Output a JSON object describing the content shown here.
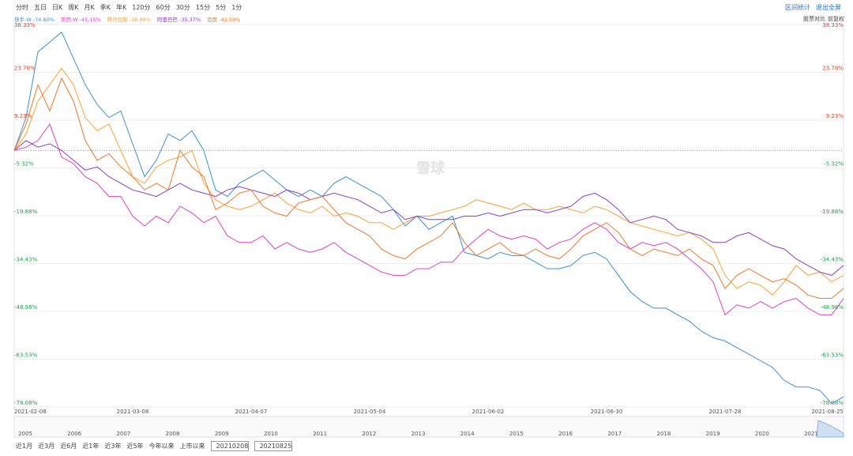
{
  "toolbar": {
    "periods": [
      "分时",
      "五日",
      "日K",
      "周K",
      "月K",
      "季K",
      "年K",
      "120分",
      "60分",
      "30分",
      "15分",
      "5分",
      "1分"
    ],
    "actions": [
      "区间统计",
      "退出全屏"
    ],
    "options": [
      "股票对比",
      "前复权"
    ]
  },
  "chart_data": {
    "type": "line",
    "watermark": "雪球",
    "x": [
      0,
      2,
      4,
      6,
      8,
      10,
      12,
      14,
      16,
      18,
      20,
      22,
      24,
      26,
      28,
      30,
      32,
      34,
      36,
      38,
      40,
      42,
      44,
      46,
      48,
      50,
      52,
      54,
      56,
      58,
      60,
      62,
      64,
      66,
      68,
      70,
      72,
      74,
      76,
      78,
      80,
      82,
      84,
      86,
      88,
      90,
      92,
      94,
      96,
      98,
      100,
      102,
      104,
      106,
      108,
      110,
      112,
      114,
      116,
      118,
      120,
      122,
      124,
      126,
      128,
      130,
      132,
      134,
      136,
      138,
      140
    ],
    "series": [
      {
        "name": "快手-W",
        "change": "-74.60%",
        "color": "#3b8fd9",
        "values": [
          0,
          10,
          30,
          33,
          36,
          28,
          20,
          14,
          10,
          12,
          2,
          -8,
          -3,
          5,
          3,
          6,
          0,
          -12,
          -14,
          -10,
          -8,
          -6,
          -9,
          -12,
          -14,
          -12,
          -14,
          -10,
          -8,
          -10,
          -12,
          -14,
          -18,
          -23,
          -20,
          -24,
          -22,
          -20,
          -31,
          -32,
          -33,
          -31,
          -32,
          -32,
          -34,
          -36,
          -36,
          -35,
          -32,
          -31,
          -33,
          -38,
          -43,
          -46,
          -48,
          -48,
          -50,
          -52,
          -55,
          -57,
          -58,
          -60,
          -62,
          -64,
          -66,
          -70,
          -72,
          -72,
          -73,
          -77,
          -75
        ]
      },
      {
        "name": "美团-W",
        "change": "-45.15%",
        "color": "#e040c8",
        "values": [
          0,
          1,
          3,
          8,
          -2,
          -4,
          -8,
          -10,
          -14,
          -14,
          -20,
          -23,
          -20,
          -22,
          -17,
          -19,
          -22,
          -20,
          -26,
          -28,
          -28,
          -26,
          -30,
          -28,
          -30,
          -31,
          -30,
          -28,
          -31,
          -33,
          -35,
          -37,
          -38,
          -38,
          -36,
          -36,
          -34,
          -34,
          -30,
          -27,
          -24,
          -26,
          -27,
          -26,
          -27,
          -30,
          -28,
          -27,
          -24,
          -22,
          -24,
          -28,
          -30,
          -28,
          -29,
          -28,
          -30,
          -33,
          -36,
          -40,
          -50,
          -47,
          -48,
          -46,
          -48,
          -46,
          -45,
          -48,
          -50,
          -50,
          -45
        ]
      },
      {
        "name": "腾讯控股",
        "change": "-38.88%",
        "color": "#ffa033",
        "values": [
          0,
          5,
          15,
          20,
          25,
          20,
          10,
          6,
          8,
          0,
          -8,
          -10,
          -5,
          -3,
          -2,
          0,
          -10,
          -15,
          -17,
          -18,
          -17,
          -15,
          -13,
          -16,
          -18,
          -19,
          -17,
          -20,
          -19,
          -20,
          -22,
          -22,
          -24,
          -22,
          -20,
          -20,
          -19,
          -18,
          -17,
          -15,
          -16,
          -17,
          -18,
          -16,
          -18,
          -18,
          -17,
          -18,
          -19,
          -17,
          -18,
          -20,
          -22,
          -23,
          -24,
          -25,
          -26,
          -25,
          -27,
          -30,
          -38,
          -42,
          -40,
          -41,
          -44,
          -40,
          -35,
          -38,
          -37,
          -40,
          -38
        ]
      },
      {
        "name": "阿里巴巴",
        "change": "-35.37%",
        "color": "#8a3fc7",
        "values": [
          0,
          3,
          1,
          2,
          0,
          -3,
          -6,
          -5,
          -8,
          -10,
          -12,
          -13,
          -14,
          -12,
          -10,
          -12,
          -13,
          -14,
          -12,
          -11,
          -12,
          -13,
          -14,
          -12,
          -13,
          -15,
          -14,
          -13,
          -14,
          -15,
          -17,
          -19,
          -18,
          -21,
          -20,
          -21,
          -21,
          -21,
          -20,
          -20,
          -19,
          -20,
          -19,
          -18,
          -18,
          -19,
          -18,
          -17,
          -14,
          -13,
          -15,
          -18,
          -22,
          -21,
          -20,
          -21,
          -24,
          -25,
          -26,
          -28,
          -28,
          -26,
          -25,
          -27,
          -29,
          -30,
          -33,
          -35,
          -37,
          -38,
          -35
        ]
      },
      {
        "name": "百度",
        "change": "-42.59%",
        "color": "#f0782a",
        "values": [
          0,
          8,
          20,
          12,
          22,
          15,
          3,
          -3,
          -1,
          -5,
          -8,
          -12,
          -10,
          -12,
          0,
          -5,
          -8,
          -18,
          -16,
          -13,
          -12,
          -17,
          -19,
          -20,
          -16,
          -15,
          -14,
          -18,
          -22,
          -24,
          -26,
          -30,
          -32,
          -33,
          -30,
          -28,
          -26,
          -22,
          -28,
          -32,
          -30,
          -28,
          -31,
          -32,
          -30,
          -32,
          -33,
          -30,
          -26,
          -24,
          -22,
          -25,
          -30,
          -32,
          -30,
          -31,
          -32,
          -30,
          -33,
          -35,
          -42,
          -38,
          -36,
          -38,
          -40,
          -39,
          -41,
          -44,
          -45,
          -45,
          -42
        ]
      }
    ],
    "ylim": [
      -78.08,
      38.33
    ],
    "yticks": [
      {
        "value": 38.33,
        "label": "38.33%"
      },
      {
        "value": 23.78,
        "label": "23.78%"
      },
      {
        "value": 9.23,
        "label": "9.23%"
      },
      {
        "value": -5.32,
        "label": "-5.32%"
      },
      {
        "value": -19.88,
        "label": "-19.88%"
      },
      {
        "value": -34.43,
        "label": "-34.43%"
      },
      {
        "value": -48.98,
        "label": "-48.98%"
      },
      {
        "value": -63.53,
        "label": "-63.53%"
      },
      {
        "value": -78.08,
        "label": "-78.08%"
      }
    ],
    "xlim": [
      0,
      140
    ],
    "xticks": [
      {
        "value": 0,
        "label": "2021-02-08"
      },
      {
        "value": 20,
        "label": "2021-03-08"
      },
      {
        "value": 40,
        "label": "2021-04-07"
      },
      {
        "value": 60,
        "label": "2021-05-04"
      },
      {
        "value": 80,
        "label": "2021-06-02"
      },
      {
        "value": 100,
        "label": "2021-06-30"
      },
      {
        "value": 120,
        "label": "2021-07-28"
      },
      {
        "value": 140,
        "label": "2021-08-25"
      }
    ],
    "grid": true
  },
  "navigator": {
    "years": [
      "2005",
      "2006",
      "2007",
      "2008",
      "2009",
      "2010",
      "2011",
      "2012",
      "2013",
      "2014",
      "2015",
      "2016",
      "2017",
      "2018",
      "2019",
      "2020",
      "2021"
    ]
  },
  "range_buttons": [
    "近1月",
    "近3月",
    "近6月",
    "近1年",
    "近3年",
    "近5年",
    "今年以来",
    "上市以来"
  ],
  "range_inputs": [
    "20210208",
    "20210825"
  ]
}
